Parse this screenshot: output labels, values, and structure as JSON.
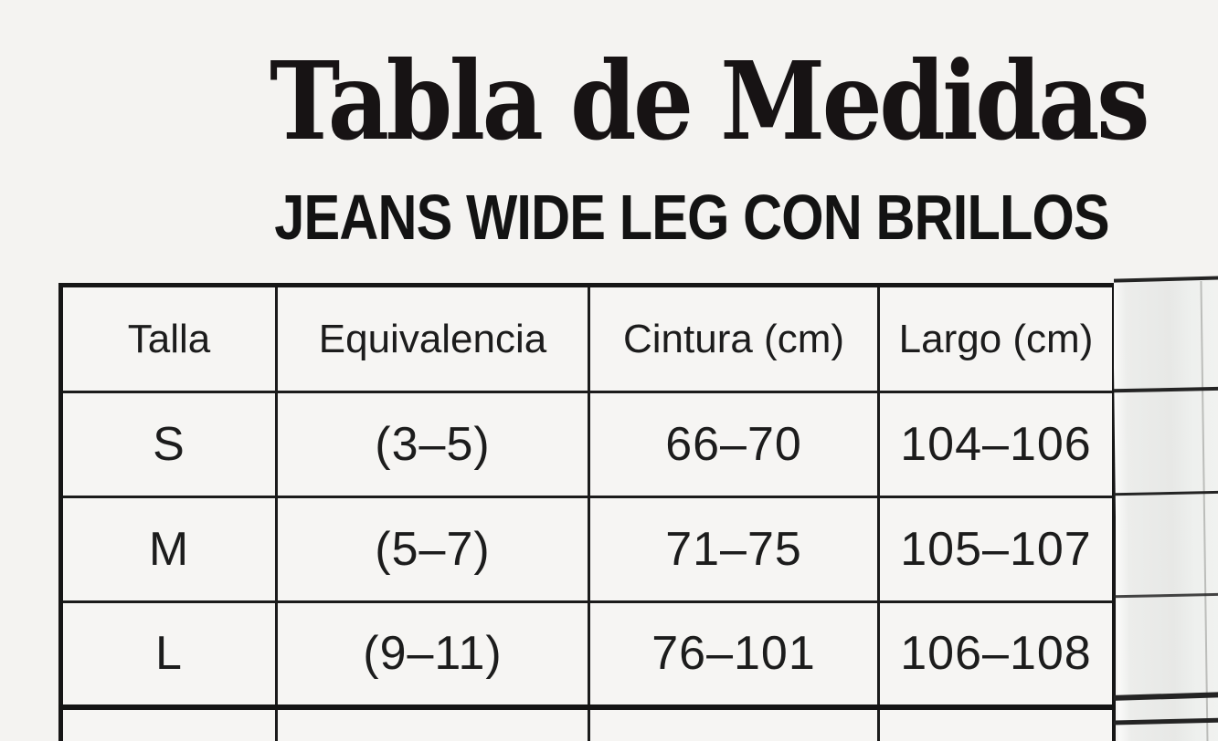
{
  "page": {
    "title": "Tabla de Medidas",
    "subtitle": "JEANS WIDE LEG CON BRILLOS"
  },
  "size_table": {
    "columns": [
      "Talla",
      "Equivalencia",
      "Cintura (cm)",
      "Largo (cm)"
    ],
    "rows": [
      {
        "cells": [
          "S",
          "(3–5)",
          "66–70",
          "104–106"
        ]
      },
      {
        "cells": [
          "M",
          "(5–7)",
          "71–75",
          "105–107"
        ]
      },
      {
        "cells": [
          "L",
          "(9–11)",
          "76–101",
          "106–108"
        ]
      }
    ],
    "partial_fifth_row_visible": true
  },
  "adjacent_table_fragment": {
    "visible": true,
    "row_count_visible": 5
  },
  "colors": {
    "background": "#f4f3f1",
    "cell_background": "#f6f5f3",
    "line": "#1b1b1b",
    "text": "#1c1c1c",
    "fragment_fill": "#e7e8e6"
  }
}
